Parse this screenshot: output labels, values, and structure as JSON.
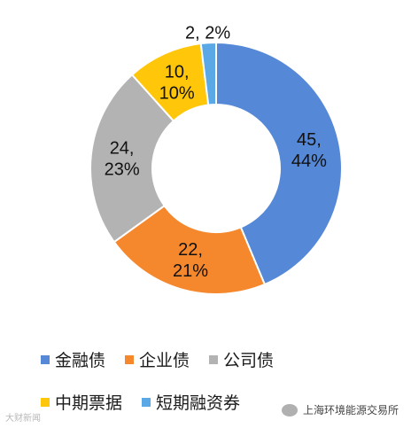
{
  "chart_data": {
    "type": "pie",
    "donut": true,
    "categories": [
      "金融债",
      "企业债",
      "公司债",
      "中期票据",
      "短期融资券"
    ],
    "values": [
      45,
      22,
      24,
      10,
      2
    ],
    "percents": [
      "44%",
      "21%",
      "23%",
      "10%",
      "2%"
    ],
    "slice_labels": [
      "45,\n44%",
      "22,\n21%",
      "24,\n23%",
      "10,\n10%",
      "2, 2%"
    ],
    "colors": [
      "#5588d6",
      "#f5882d",
      "#b3b3b3",
      "#ffc60a",
      "#5aa9e6"
    ],
    "legend_position": "bottom"
  },
  "watermark": {
    "left_text": "大财新闻",
    "right_text": "上海环境能源交易所"
  }
}
